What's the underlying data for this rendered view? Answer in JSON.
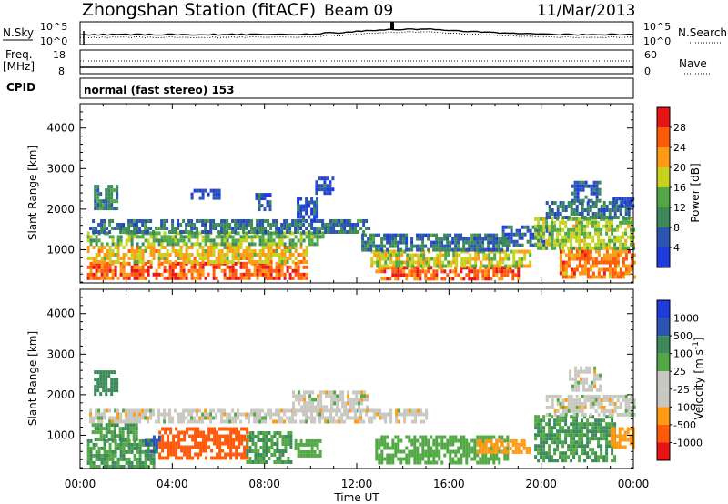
{
  "header": {
    "station": "Zhongshan Station (fitACF)",
    "beam": "Beam 09",
    "date": "11/Mar/2013"
  },
  "noise_panel": {
    "left_label": "N.Sky",
    "left_ticks": [
      "10^5",
      "10^0"
    ],
    "right_ticks": [
      "10^5",
      "10^0"
    ],
    "right_label": "N.Search"
  },
  "freq_panel": {
    "left_label_top": "Freq.",
    "left_label_unit": "[MHz]",
    "left_ticks": [
      "18",
      "8"
    ],
    "right_ticks": [
      "60",
      "0"
    ],
    "right_label": "Nave"
  },
  "cpid": {
    "label": "CPID",
    "mode": "normal (fast stereo) 153"
  },
  "time_axis": {
    "ticks": [
      "00:00",
      "04:00",
      "08:00",
      "12:00",
      "16:00",
      "20:00",
      "00:00"
    ],
    "label": "Time UT"
  },
  "colors": {
    "power_scale": [
      "#1e3cdc",
      "#2b55b0",
      "#3c8a5a",
      "#52a845",
      "#c8d21e",
      "#ff9a14",
      "#ff5a0a",
      "#e61414"
    ],
    "velocity_scale": [
      "#1e3cdc",
      "#2b55b0",
      "#3c8a5a",
      "#52a845",
      "#c8c8c0",
      "#c8c8c0",
      "#ff9a14",
      "#ff5a0a",
      "#e61414"
    ],
    "ground_scatter": "#c0c0b8"
  },
  "chart_data": [
    {
      "type": "heatmap",
      "title": "Power",
      "ylabel": "Slant Range [km]",
      "xlabel": "",
      "yticks": [
        "1000",
        "2000",
        "3000",
        "4000"
      ],
      "ylim": [
        180,
        4600
      ],
      "xlim_hours": [
        0,
        24
      ],
      "colorbar": {
        "label": "Power [dB]",
        "ticks": [
          "4",
          "8",
          "12",
          "16",
          "20",
          "24",
          "28"
        ],
        "range": [
          0,
          32
        ]
      },
      "bands": [
        {
          "t0": 0.3,
          "t1": 9.8,
          "r0": 300,
          "r1": 700,
          "value": 26
        },
        {
          "t0": 0.3,
          "t1": 9.8,
          "r0": 700,
          "r1": 1100,
          "value": 20
        },
        {
          "t0": 0.3,
          "t1": 10.5,
          "r0": 1100,
          "r1": 1450,
          "value": 14
        },
        {
          "t0": 0.4,
          "t1": 12.5,
          "r0": 1450,
          "r1": 1750,
          "value": 8
        },
        {
          "t0": 0.6,
          "t1": 1.6,
          "r0": 2000,
          "r1": 2600,
          "value": 10
        },
        {
          "t0": 4.8,
          "t1": 6.0,
          "r0": 2300,
          "r1": 2500,
          "value": 6
        },
        {
          "t0": 7.6,
          "t1": 8.2,
          "r0": 2000,
          "r1": 2400,
          "value": 6
        },
        {
          "t0": 9.4,
          "t1": 10.3,
          "r0": 1700,
          "r1": 2300,
          "value": 5
        },
        {
          "t0": 10.2,
          "t1": 11.0,
          "r0": 2400,
          "r1": 2800,
          "value": 4
        },
        {
          "t0": 12.8,
          "t1": 19.0,
          "r0": 250,
          "r1": 600,
          "value": 26
        },
        {
          "t0": 12.6,
          "t1": 19.5,
          "r0": 600,
          "r1": 1000,
          "value": 18
        },
        {
          "t0": 12.2,
          "t1": 18.5,
          "r0": 1000,
          "r1": 1400,
          "value": 8
        },
        {
          "t0": 18.3,
          "t1": 20.5,
          "r0": 1100,
          "r1": 1600,
          "value": 6
        },
        {
          "t0": 20.8,
          "t1": 24.0,
          "r0": 350,
          "r1": 1000,
          "value": 24
        },
        {
          "t0": 19.7,
          "t1": 24.0,
          "r0": 1000,
          "r1": 1800,
          "value": 16
        },
        {
          "t0": 20.2,
          "t1": 23.8,
          "r0": 1800,
          "r1": 2200,
          "value": 8
        },
        {
          "t0": 21.3,
          "t1": 22.6,
          "r0": 2200,
          "r1": 2700,
          "value": 6
        },
        {
          "t0": 23.1,
          "t1": 24.0,
          "r0": 2100,
          "r1": 2300,
          "value": 5
        }
      ]
    },
    {
      "type": "heatmap",
      "title": "Velocity",
      "ylabel": "Slant Range [km]",
      "xlabel": "Time UT",
      "yticks": [
        "1000",
        "2000",
        "3000",
        "4000"
      ],
      "ylim": [
        180,
        4600
      ],
      "xlim_hours": [
        0,
        24
      ],
      "colorbar": {
        "label": "Velocity [m s^-1]",
        "ticks": [
          "1000",
          "500",
          "100",
          "25",
          "-25",
          "-100",
          "-500",
          "-1000"
        ]
      },
      "bands": [
        {
          "t0": 0.3,
          "t1": 3.2,
          "r0": 250,
          "r1": 900,
          "value": 100
        },
        {
          "t0": 0.5,
          "t1": 2.4,
          "r0": 900,
          "r1": 1300,
          "value": 100
        },
        {
          "t0": 0.6,
          "t1": 1.6,
          "r0": 2000,
          "r1": 2600,
          "value": 200
        },
        {
          "t0": 2.8,
          "t1": 3.4,
          "r0": 600,
          "r1": 1000,
          "value": 600
        },
        {
          "t0": 3.4,
          "t1": 7.2,
          "r0": 450,
          "r1": 1200,
          "value": -200
        },
        {
          "t0": 7.2,
          "t1": 9.2,
          "r0": 300,
          "r1": 1100,
          "value": 100
        },
        {
          "t0": 9.3,
          "t1": 10.4,
          "r0": 500,
          "r1": 900,
          "value": 60
        },
        {
          "t0": 0.4,
          "t1": 15.0,
          "r0": 1300,
          "r1": 1650,
          "value": 0
        },
        {
          "t0": 9.2,
          "t1": 12.5,
          "r0": 1650,
          "r1": 2100,
          "value": 0
        },
        {
          "t0": 12.8,
          "t1": 18.6,
          "r0": 350,
          "r1": 1000,
          "value": 60
        },
        {
          "t0": 17.2,
          "t1": 19.5,
          "r0": 600,
          "r1": 900,
          "value": -60
        },
        {
          "t0": 19.7,
          "t1": 23.2,
          "r0": 400,
          "r1": 1500,
          "value": 100
        },
        {
          "t0": 20.2,
          "t1": 24.0,
          "r0": 1500,
          "r1": 2000,
          "value": 0
        },
        {
          "t0": 21.2,
          "t1": 22.6,
          "r0": 2100,
          "r1": 2700,
          "value": 0
        },
        {
          "t0": 23.0,
          "t1": 24.0,
          "r0": 700,
          "r1": 1200,
          "value": -60
        }
      ]
    }
  ]
}
